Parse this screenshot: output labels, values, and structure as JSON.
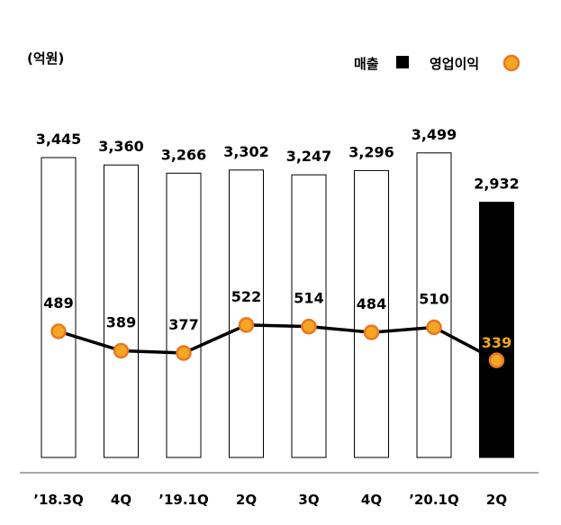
{
  "chart_data": {
    "type": "bar",
    "unit_label": "(억원)",
    "categories": [
      "’18.3Q",
      "4Q",
      "’19.1Q",
      "2Q",
      "3Q",
      "4Q",
      "’20.1Q",
      "2Q"
    ],
    "series": [
      {
        "name": "매출",
        "type": "bar",
        "values": [
          3445,
          3360,
          3266,
          3302,
          3247,
          3296,
          3499,
          2932
        ],
        "labels": [
          "3,445",
          "3,360",
          "3,266",
          "3,302",
          "3,247",
          "3,296",
          "3,499",
          "2,932"
        ],
        "color": "#ffffff",
        "highlight_color": "#000000",
        "highlight_index": 7
      },
      {
        "name": "영업이익",
        "type": "line",
        "values": [
          489,
          389,
          377,
          522,
          514,
          484,
          510,
          339
        ],
        "labels": [
          "489",
          "389",
          "377",
          "522",
          "514",
          "484",
          "510",
          "339"
        ],
        "color": "#000000",
        "marker_color": "#f5a623"
      }
    ],
    "legend_position": "top-right",
    "grid": false
  }
}
